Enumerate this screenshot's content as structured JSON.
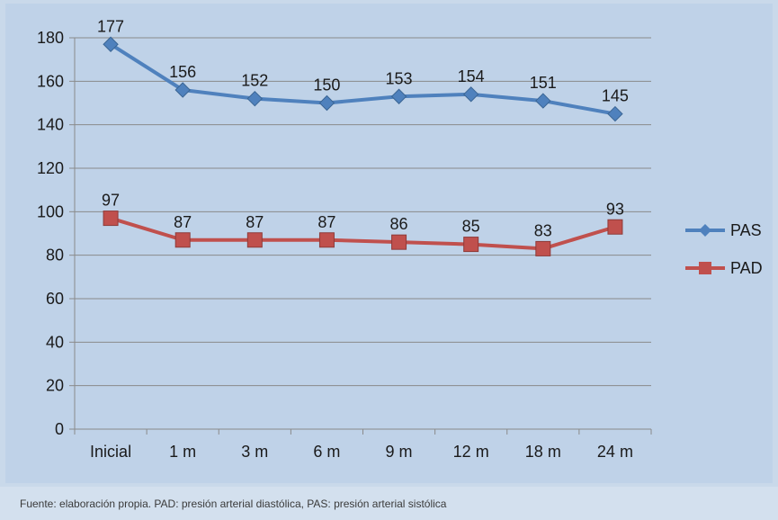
{
  "chart_data": {
    "type": "line",
    "categories": [
      "Inicial",
      "1 m",
      "3 m",
      "6 m",
      "9 m",
      "12 m",
      "18 m",
      "24 m"
    ],
    "series": [
      {
        "name": "PAS",
        "values": [
          177,
          156,
          152,
          150,
          153,
          154,
          151,
          145
        ],
        "color": "#4f81bd",
        "marker": "diamond"
      },
      {
        "name": "PAD",
        "values": [
          97,
          87,
          87,
          87,
          86,
          85,
          83,
          93
        ],
        "color": "#c0504d",
        "marker": "square"
      }
    ],
    "ylim": [
      0,
      180
    ],
    "yticks": [
      0,
      20,
      40,
      60,
      80,
      100,
      120,
      140,
      160,
      180
    ],
    "grid": true,
    "legend_position": "right",
    "data_labels": true,
    "title": "",
    "xlabel": "",
    "ylabel": ""
  },
  "caption": "Fuente: elaboración propia. PAD: presión arterial diastólica, PAS: presión arterial sistólica",
  "colors": {
    "plot_background": "#bfd2e8",
    "gridline": "#8a8a8a",
    "caption_background": "#d3e0ee"
  }
}
